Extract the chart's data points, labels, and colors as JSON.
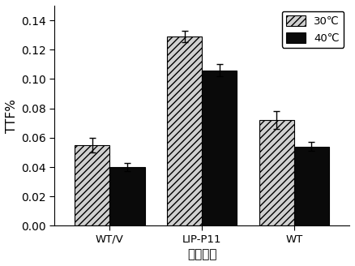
{
  "categories": [
    "WT/V",
    "LIP-P11",
    "WT"
  ],
  "values_30": [
    0.055,
    0.129,
    0.072
  ],
  "values_40": [
    0.04,
    0.106,
    0.054
  ],
  "errors_30": [
    0.005,
    0.004,
    0.006
  ],
  "errors_40": [
    0.003,
    0.004,
    0.003
  ],
  "ylabel": "TTF%",
  "xlabel": "酵母菌株",
  "ylim": [
    0,
    0.15
  ],
  "yticks": [
    0.0,
    0.02,
    0.04,
    0.06,
    0.08,
    0.1,
    0.12,
    0.14
  ],
  "legend_labels": [
    "30℃",
    "40℃"
  ],
  "bar_color_30": "#d0d0d0",
  "bar_color_40": "#0a0a0a",
  "hatch_30": "////",
  "bar_width": 0.38,
  "group_positions": [
    1,
    2,
    3
  ],
  "title": "",
  "background_color": "#ffffff",
  "figsize": [
    4.38,
    3.28
  ],
  "dpi": 100
}
